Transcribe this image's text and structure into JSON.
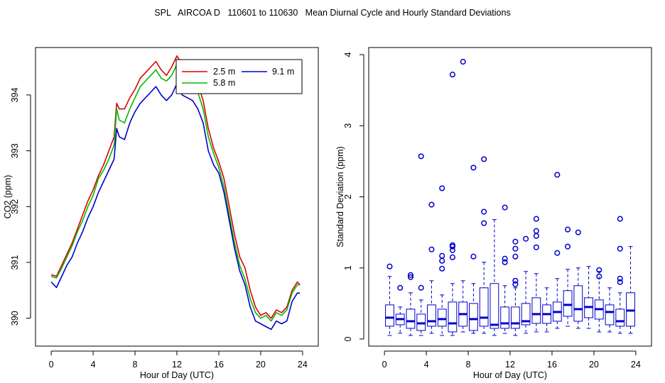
{
  "title": "SPL   AIRCOA D   110601 to 110630   Mean Diurnal Cycle and Hourly Standard Deviations",
  "colors": {
    "red": "#dd0000",
    "green": "#00bb00",
    "blue": "#0000cc",
    "axis": "#000000"
  },
  "chart_data": [
    {
      "type": "line",
      "xlabel": "Hour of Day (UTC)",
      "ylabel": "CO2 (ppm)",
      "xlim": [
        -1.5,
        25.5
      ],
      "ylim": [
        389.5,
        394.85
      ],
      "xticks": [
        0,
        4,
        8,
        12,
        16,
        20,
        24
      ],
      "xtick_labels": [
        "0",
        "4",
        "8",
        "12",
        "16",
        "20",
        "24"
      ],
      "yticks": [
        390,
        391,
        392,
        393,
        394
      ],
      "ytick_labels": [
        "390",
        "391",
        "392",
        "393",
        "394"
      ],
      "legend_position": "top-right",
      "series": [
        {
          "name": "2.5 m",
          "color": "#dd0000",
          "points": [
            [
              0,
              390.78
            ],
            [
              0.5,
              390.75
            ],
            [
              1,
              390.95
            ],
            [
              1.5,
              391.15
            ],
            [
              2,
              391.35
            ],
            [
              2.5,
              391.6
            ],
            [
              3,
              391.85
            ],
            [
              3.5,
              392.1
            ],
            [
              4,
              392.3
            ],
            [
              4.5,
              392.55
            ],
            [
              5,
              392.75
            ],
            [
              5.5,
              393.0
            ],
            [
              6,
              393.25
            ],
            [
              6.25,
              393.85
            ],
            [
              6.5,
              393.75
            ],
            [
              7,
              393.75
            ],
            [
              7.5,
              393.95
            ],
            [
              8,
              394.1
            ],
            [
              8.5,
              394.3
            ],
            [
              9,
              394.4
            ],
            [
              9.5,
              394.5
            ],
            [
              10,
              394.6
            ],
            [
              10.5,
              394.45
            ],
            [
              11,
              394.35
            ],
            [
              11.5,
              394.5
            ],
            [
              12,
              394.7
            ],
            [
              12.5,
              394.55
            ],
            [
              13,
              394.4
            ],
            [
              13.5,
              394.35
            ],
            [
              14,
              394.2
            ],
            [
              14.5,
              393.9
            ],
            [
              15,
              393.4
            ],
            [
              15.5,
              393.05
            ],
            [
              16,
              392.8
            ],
            [
              16.5,
              392.5
            ],
            [
              17,
              392.0
            ],
            [
              17.5,
              391.5
            ],
            [
              18,
              391.1
            ],
            [
              18.5,
              390.9
            ],
            [
              19,
              390.5
            ],
            [
              19.5,
              390.2
            ],
            [
              20,
              390.05
            ],
            [
              20.5,
              390.1
            ],
            [
              21,
              390.0
            ],
            [
              21.5,
              390.15
            ],
            [
              22,
              390.1
            ],
            [
              22.5,
              390.2
            ],
            [
              23,
              390.5
            ],
            [
              23.5,
              390.65
            ],
            [
              23.75,
              390.6
            ]
          ]
        },
        {
          "name": "5.8 m",
          "color": "#00bb00",
          "points": [
            [
              0,
              390.75
            ],
            [
              0.5,
              390.72
            ],
            [
              1,
              390.9
            ],
            [
              1.5,
              391.1
            ],
            [
              2,
              391.3
            ],
            [
              2.5,
              391.55
            ],
            [
              3,
              391.75
            ],
            [
              3.5,
              392.0
            ],
            [
              4,
              392.2
            ],
            [
              4.5,
              392.5
            ],
            [
              5,
              392.65
            ],
            [
              5.5,
              392.85
            ],
            [
              6,
              393.1
            ],
            [
              6.25,
              393.75
            ],
            [
              6.5,
              393.55
            ],
            [
              7,
              393.5
            ],
            [
              7.5,
              393.75
            ],
            [
              8,
              393.95
            ],
            [
              8.5,
              394.15
            ],
            [
              9,
              394.25
            ],
            [
              9.5,
              394.35
            ],
            [
              10,
              394.45
            ],
            [
              10.5,
              394.3
            ],
            [
              11,
              394.25
            ],
            [
              11.5,
              394.35
            ],
            [
              12,
              394.55
            ],
            [
              12.5,
              394.35
            ],
            [
              13,
              394.25
            ],
            [
              13.5,
              394.2
            ],
            [
              14,
              394.05
            ],
            [
              14.5,
              393.75
            ],
            [
              15,
              393.25
            ],
            [
              15.5,
              392.95
            ],
            [
              16,
              392.7
            ],
            [
              16.5,
              392.35
            ],
            [
              17,
              391.85
            ],
            [
              17.5,
              391.35
            ],
            [
              18,
              390.95
            ],
            [
              18.5,
              390.7
            ],
            [
              19,
              390.35
            ],
            [
              19.5,
              390.1
            ],
            [
              20,
              390.0
            ],
            [
              20.5,
              390.05
            ],
            [
              21,
              389.95
            ],
            [
              21.5,
              390.1
            ],
            [
              22,
              390.05
            ],
            [
              22.5,
              390.15
            ],
            [
              23,
              390.45
            ],
            [
              23.5,
              390.6
            ],
            [
              23.75,
              390.6
            ]
          ]
        },
        {
          "name": "9.1 m",
          "color": "#0000cc",
          "points": [
            [
              0,
              390.65
            ],
            [
              0.5,
              390.55
            ],
            [
              1,
              390.75
            ],
            [
              1.5,
              390.95
            ],
            [
              2,
              391.1
            ],
            [
              2.5,
              391.35
            ],
            [
              3,
              391.55
            ],
            [
              3.5,
              391.8
            ],
            [
              4,
              392.0
            ],
            [
              4.5,
              392.25
            ],
            [
              5,
              392.45
            ],
            [
              5.5,
              392.65
            ],
            [
              6,
              392.85
            ],
            [
              6.25,
              393.4
            ],
            [
              6.5,
              393.25
            ],
            [
              7,
              393.2
            ],
            [
              7.5,
              393.5
            ],
            [
              8,
              393.7
            ],
            [
              8.5,
              393.85
            ],
            [
              9,
              393.95
            ],
            [
              9.5,
              394.05
            ],
            [
              10,
              394.15
            ],
            [
              10.5,
              394.0
            ],
            [
              11,
              393.9
            ],
            [
              11.5,
              394.0
            ],
            [
              12,
              394.2
            ],
            [
              12.5,
              394.0
            ],
            [
              13,
              393.95
            ],
            [
              13.5,
              393.9
            ],
            [
              14,
              393.75
            ],
            [
              14.5,
              393.5
            ],
            [
              15,
              393.0
            ],
            [
              15.5,
              392.75
            ],
            [
              16,
              392.6
            ],
            [
              16.5,
              392.25
            ],
            [
              17,
              391.75
            ],
            [
              17.5,
              391.25
            ],
            [
              18,
              390.85
            ],
            [
              18.5,
              390.6
            ],
            [
              19,
              390.2
            ],
            [
              19.5,
              389.95
            ],
            [
              20,
              389.9
            ],
            [
              20.5,
              389.85
            ],
            [
              21,
              389.8
            ],
            [
              21.5,
              389.95
            ],
            [
              22,
              389.9
            ],
            [
              22.5,
              389.95
            ],
            [
              23,
              390.3
            ],
            [
              23.5,
              390.45
            ],
            [
              23.75,
              390.45
            ]
          ]
        }
      ]
    },
    {
      "type": "box",
      "xlabel": "Hour of Day (UTC)",
      "ylabel": "Standard Deviation (ppm)",
      "xlim": [
        -1.5,
        25.5
      ],
      "ylim": [
        -0.1,
        4.1
      ],
      "xticks": [
        0,
        4,
        8,
        12,
        16,
        20,
        24
      ],
      "xtick_labels": [
        "0",
        "4",
        "8",
        "12",
        "16",
        "20",
        "24"
      ],
      "yticks": [
        0,
        1,
        2,
        3,
        4
      ],
      "ytick_labels": [
        "0",
        "1",
        "2",
        "3",
        "4"
      ],
      "color": "#0000cc",
      "boxes": [
        {
          "x": 0.5,
          "min": 0.05,
          "q1": 0.18,
          "median": 0.3,
          "q3": 0.48,
          "max": 0.88,
          "outliers": [
            1.02
          ]
        },
        {
          "x": 1.5,
          "min": 0.08,
          "q1": 0.2,
          "median": 0.28,
          "q3": 0.35,
          "max": 0.45,
          "outliers": [
            0.72
          ]
        },
        {
          "x": 2.5,
          "min": 0.05,
          "q1": 0.15,
          "median": 0.25,
          "q3": 0.42,
          "max": 0.65,
          "outliers": [
            0.87,
            0.9
          ]
        },
        {
          "x": 3.5,
          "min": 0.05,
          "q1": 0.12,
          "median": 0.22,
          "q3": 0.35,
          "max": 0.55,
          "outliers": [
            0.72,
            2.57
          ]
        },
        {
          "x": 4.5,
          "min": 0.08,
          "q1": 0.18,
          "median": 0.25,
          "q3": 0.48,
          "max": 0.82,
          "outliers": [
            1.26,
            1.89
          ]
        },
        {
          "x": 5.5,
          "min": 0.05,
          "q1": 0.18,
          "median": 0.28,
          "q3": 0.42,
          "max": 0.62,
          "outliers": [
            0.99,
            1.1,
            1.17,
            2.12
          ]
        },
        {
          "x": 6.5,
          "min": 0.05,
          "q1": 0.1,
          "median": 0.22,
          "q3": 0.52,
          "max": 0.78,
          "outliers": [
            1.15,
            1.25,
            1.3,
            1.32,
            3.72
          ]
        },
        {
          "x": 7.5,
          "min": 0.1,
          "q1": 0.18,
          "median": 0.35,
          "q3": 0.52,
          "max": 0.82,
          "outliers": [
            3.9
          ]
        },
        {
          "x": 8.5,
          "min": 0.08,
          "q1": 0.12,
          "median": 0.28,
          "q3": 0.5,
          "max": 0.78,
          "outliers": [
            1.16,
            2.41
          ]
        },
        {
          "x": 9.5,
          "min": 0.08,
          "q1": 0.18,
          "median": 0.3,
          "q3": 0.72,
          "max": 1.08,
          "outliers": [
            1.63,
            1.79,
            2.53
          ]
        },
        {
          "x": 10.5,
          "min": 0.05,
          "q1": 0.15,
          "median": 0.2,
          "q3": 0.78,
          "max": 1.68,
          "outliers": []
        },
        {
          "x": 11.5,
          "min": 0.08,
          "q1": 0.15,
          "median": 0.22,
          "q3": 0.45,
          "max": 0.75,
          "outliers": [
            1.08,
            1.13,
            1.85
          ]
        },
        {
          "x": 12.5,
          "min": 0.05,
          "q1": 0.15,
          "median": 0.22,
          "q3": 0.45,
          "max": 0.72,
          "outliers": [
            0.77,
            0.82,
            1.16,
            1.27,
            1.37
          ]
        },
        {
          "x": 13.5,
          "min": 0.08,
          "q1": 0.2,
          "median": 0.25,
          "q3": 0.5,
          "max": 0.95,
          "outliers": [
            1.41
          ]
        },
        {
          "x": 14.5,
          "min": 0.1,
          "q1": 0.22,
          "median": 0.35,
          "q3": 0.58,
          "max": 0.92,
          "outliers": [
            1.29,
            1.45,
            1.52,
            1.69
          ]
        },
        {
          "x": 15.5,
          "min": 0.1,
          "q1": 0.22,
          "median": 0.35,
          "q3": 0.48,
          "max": 0.72,
          "outliers": []
        },
        {
          "x": 16.5,
          "min": 0.15,
          "q1": 0.25,
          "median": 0.38,
          "q3": 0.52,
          "max": 0.85,
          "outliers": [
            1.21,
            2.31
          ]
        },
        {
          "x": 17.5,
          "min": 0.18,
          "q1": 0.32,
          "median": 0.48,
          "q3": 0.68,
          "max": 0.98,
          "outliers": [
            1.3,
            1.54
          ]
        },
        {
          "x": 18.5,
          "min": 0.15,
          "q1": 0.25,
          "median": 0.42,
          "q3": 0.75,
          "max": 1.0,
          "outliers": [
            1.5
          ]
        },
        {
          "x": 19.5,
          "min": 0.15,
          "q1": 0.3,
          "median": 0.45,
          "q3": 0.58,
          "max": 1.02,
          "outliers": []
        },
        {
          "x": 20.5,
          "min": 0.1,
          "q1": 0.28,
          "median": 0.42,
          "q3": 0.55,
          "max": 0.95,
          "outliers": [
            0.88,
            0.97
          ]
        },
        {
          "x": 21.5,
          "min": 0.1,
          "q1": 0.2,
          "median": 0.38,
          "q3": 0.48,
          "max": 0.72,
          "outliers": []
        },
        {
          "x": 22.5,
          "min": 0.08,
          "q1": 0.18,
          "median": 0.25,
          "q3": 0.42,
          "max": 0.65,
          "outliers": [
            0.8,
            0.85,
            1.27,
            1.69
          ]
        },
        {
          "x": 23.5,
          "min": 0.08,
          "q1": 0.18,
          "median": 0.4,
          "q3": 0.65,
          "max": 1.3,
          "outliers": []
        }
      ]
    }
  ]
}
